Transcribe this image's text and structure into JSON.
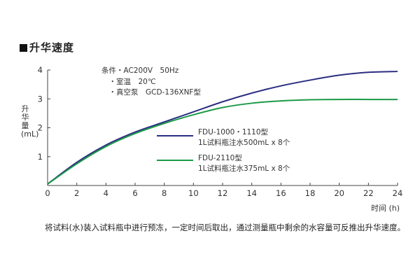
{
  "heading": "升华速度",
  "conditions": [
    "条件・AC200V　50Hz",
    "　・室温　20℃",
    "　・真空泵　GCD-136XNF型"
  ],
  "footnote": "将试料(水)装入试料瓶中进行预冻，一定时间后取出，通过测量瓶中剩余的水容量可反推出升华速度。",
  "chart_data": {
    "type": "line",
    "ylabel": "升华量 (mL)",
    "xlabel": "时间 (h)",
    "xlim": [
      0,
      24
    ],
    "ylim": [
      0,
      4
    ],
    "xticks": [
      0,
      2,
      4,
      6,
      8,
      10,
      12,
      14,
      16,
      18,
      20,
      22,
      24
    ],
    "yticks": [
      1,
      2,
      3,
      4
    ],
    "grid": false,
    "series": [
      {
        "legend_lines": [
          "FDU-1000・1110型",
          "1L试料瓶注水500mL x 8个"
        ],
        "color": "#2b2e82",
        "x": [
          0,
          2,
          4,
          6,
          8,
          10,
          12,
          14,
          16,
          18,
          20,
          22,
          24
        ],
        "y": [
          0.05,
          0.8,
          1.4,
          1.85,
          2.2,
          2.55,
          2.9,
          3.2,
          3.45,
          3.65,
          3.82,
          3.92,
          3.95
        ]
      },
      {
        "legend_lines": [
          "FDU-2110型",
          "1L试料瓶注水375mL x 8个"
        ],
        "color": "#1c9a48",
        "x": [
          0,
          2,
          4,
          6,
          8,
          10,
          12,
          14,
          16,
          18,
          20,
          22,
          24
        ],
        "y": [
          0.05,
          0.75,
          1.35,
          1.8,
          2.15,
          2.45,
          2.7,
          2.85,
          2.93,
          2.97,
          2.98,
          2.98,
          2.98
        ]
      }
    ]
  }
}
